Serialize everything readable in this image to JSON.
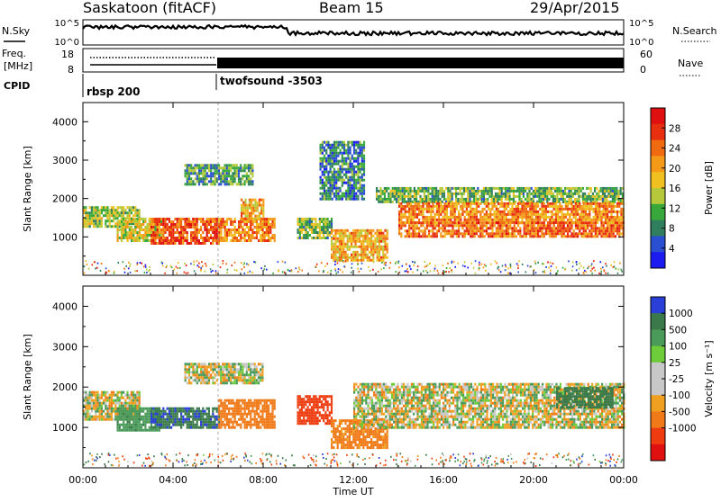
{
  "header": {
    "station": "Saskatoon (fitACF)",
    "beam": "Beam 15",
    "date": "29/Apr/2015"
  },
  "top_panels": {
    "nsky_label": "N.Sky",
    "nsky_ticks": [
      "10^5",
      "10^0"
    ],
    "nsearch_label": "N.Search",
    "nsearch_ticks": [
      "10^5",
      "10^0"
    ],
    "freq_label_1": "Freq.",
    "freq_label_2": "[MHz]",
    "freq_ticks": [
      "18",
      "8"
    ],
    "nave_label": "Nave",
    "nave_ticks": [
      "60",
      "0"
    ],
    "cpid_label": "CPID",
    "cpid_programs": [
      {
        "name": "rbsp 200",
        "start_hour": 0
      },
      {
        "name": "twofsound -3503",
        "start_hour": 6
      }
    ]
  },
  "colors": {
    "power_scale": [
      "#1c1cf0",
      "#2a4fd0",
      "#2f7f5f",
      "#38a83a",
      "#b5c93a",
      "#f0c020",
      "#f59a18",
      "#f06a10",
      "#e83010",
      "#e01010"
    ],
    "velocity_scale": [
      "#2a3fd8",
      "#3a7a4a",
      "#4a9a5a",
      "#6ecb3a",
      "#c8c8c8",
      "#c8c8c8",
      "#f0a020",
      "#f07a18",
      "#ee3c10",
      "#e01010"
    ]
  },
  "chart_data": [
    {
      "type": "heatmap",
      "name": "power-panel",
      "ylabel": "Slant Range [km]",
      "yticks": [
        "1000",
        "2000",
        "3000",
        "4000"
      ],
      "ylim": [
        0,
        4500
      ],
      "colorbar_label": "Power [dB]",
      "colorbar_ticks": [
        "4",
        "8",
        "12",
        "16",
        "20",
        "24",
        "28"
      ],
      "colorbar_range": [
        0,
        32
      ],
      "regions": [
        {
          "t0": 0.0,
          "t1": 2.5,
          "r0": 1300,
          "r1": 1800,
          "v": 14
        },
        {
          "t0": 1.5,
          "t1": 3.5,
          "r0": 900,
          "r1": 1500,
          "v": 16
        },
        {
          "t0": 3.0,
          "t1": 6.0,
          "r0": 800,
          "r1": 1500,
          "v": 26
        },
        {
          "t0": 6.0,
          "t1": 8.5,
          "r0": 900,
          "r1": 1500,
          "v": 22
        },
        {
          "t0": 7.0,
          "t1": 8.0,
          "r0": 1500,
          "r1": 2000,
          "v": 20
        },
        {
          "t0": 4.5,
          "t1": 7.5,
          "r0": 2400,
          "r1": 2900,
          "v": 10
        },
        {
          "t0": 9.5,
          "t1": 11.0,
          "r0": 1000,
          "r1": 1500,
          "v": 12
        },
        {
          "t0": 11.0,
          "t1": 13.5,
          "r0": 400,
          "r1": 1200,
          "v": 20
        },
        {
          "t0": 13.0,
          "t1": 24.0,
          "r0": 1900,
          "r1": 2300,
          "v": 12
        },
        {
          "t0": 14.0,
          "t1": 24.0,
          "r0": 1400,
          "r1": 1900,
          "v": 22
        },
        {
          "t0": 14.0,
          "t1": 24.0,
          "r0": 1000,
          "r1": 1400,
          "v": 24
        },
        {
          "t0": 10.5,
          "t1": 12.5,
          "r0": 2000,
          "r1": 3500,
          "v": 8
        }
      ]
    },
    {
      "type": "heatmap",
      "name": "velocity-panel",
      "ylabel": "Slant Range [km]",
      "yticks": [
        "1000",
        "2000",
        "3000",
        "4000"
      ],
      "ylim": [
        0,
        4500
      ],
      "xlabel": "Time UT",
      "xticks": [
        "00:00",
        "04:00",
        "08:00",
        "12:00",
        "16:00",
        "20:00",
        "00:00"
      ],
      "xlim": [
        0,
        24
      ],
      "colorbar_label": "Velocity [m s⁻¹]",
      "colorbar_ticks": [
        "1000",
        "500",
        "100",
        "25",
        "-25",
        "-100",
        "-500",
        "-1000"
      ],
      "regions": [
        {
          "t0": 0.0,
          "t1": 2.5,
          "r0": 1200,
          "r1": 1900,
          "v": 0
        },
        {
          "t0": 1.5,
          "t1": 3.5,
          "r0": 900,
          "r1": 1500,
          "v": 200
        },
        {
          "t0": 3.0,
          "t1": 6.0,
          "r0": 1000,
          "r1": 1500,
          "v": 700
        },
        {
          "t0": 6.0,
          "t1": 8.5,
          "r0": 1000,
          "r1": 1700,
          "v": -300
        },
        {
          "t0": 9.5,
          "t1": 11.0,
          "r0": 1100,
          "r1": 1800,
          "v": -700
        },
        {
          "t0": 11.0,
          "t1": 13.5,
          "r0": 500,
          "r1": 1200,
          "v": -200
        },
        {
          "t0": 12.0,
          "t1": 24.0,
          "r0": 1000,
          "r1": 2100,
          "v": 0
        },
        {
          "t0": 21.0,
          "t1": 23.5,
          "r0": 1500,
          "r1": 2000,
          "v": 600
        },
        {
          "t0": 4.5,
          "t1": 8.0,
          "r0": 2100,
          "r1": 2600,
          "v": 0
        }
      ]
    }
  ]
}
